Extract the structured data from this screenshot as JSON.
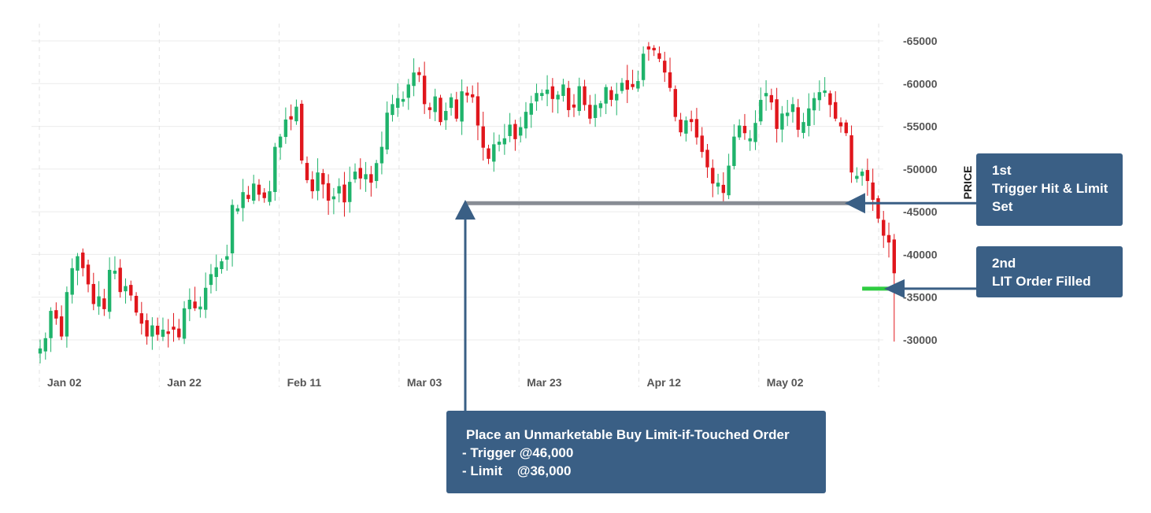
{
  "chart_data": {
    "type": "candlestick",
    "ylabel": "PRICE",
    "ylim": [
      27000,
      66000
    ],
    "y_ticks": [
      65000,
      60000,
      55000,
      50000,
      45000,
      40000,
      35000,
      30000
    ],
    "y_tick_labels": [
      "-65000",
      "-60000",
      "-55000",
      "-50000",
      "-45000",
      "-40000",
      "-35000",
      "-30000"
    ],
    "x_ticks": [
      "Jan 02",
      "Jan 22",
      "Feb 11",
      "Mar 03",
      "Mar 23",
      "Apr 12",
      "May 02"
    ],
    "grid": true,
    "up_color": "#1fb36b",
    "down_color": "#e0161c",
    "close_path": [
      29000,
      30200,
      33400,
      32500,
      30400,
      35600,
      38400,
      39800,
      38400,
      36500,
      34200,
      35100,
      33600,
      38200,
      38100,
      35600,
      36300,
      35200,
      33200,
      31900,
      30400,
      31700,
      30600,
      31200,
      30700,
      31200,
      30300,
      33700,
      34700,
      33700,
      33900,
      36100,
      37700,
      38500,
      39200,
      39800,
      45800,
      45400,
      47300,
      46500,
      48300,
      47000,
      46600,
      47400,
      52600,
      53800,
      55800,
      55800,
      57300,
      51000,
      48700,
      47400,
      49600,
      48200,
      46300,
      46800,
      48000,
      46100,
      48500,
      49700,
      48900,
      49400,
      48400,
      50700,
      52600,
      56600,
      57600,
      58300,
      58200,
      59900,
      61300,
      61000,
      57600,
      56900,
      58500,
      55500,
      56800,
      58400,
      55900,
      59100,
      58600,
      58400,
      55100,
      52500,
      51200,
      52900,
      53200,
      53600,
      55200,
      53500,
      54900,
      56700,
      57700,
      58900,
      58900,
      59300,
      58200,
      58700,
      59900,
      56900,
      57200,
      59700,
      57500,
      55900,
      57500,
      57700,
      59600,
      58100,
      58800,
      60100,
      59300,
      59600,
      60300,
      63500,
      64000,
      63900,
      62900,
      61300,
      59500,
      56100,
      54300,
      55700,
      55500,
      53700,
      52000,
      50200,
      48300,
      48400,
      47200,
      50400,
      53800,
      55100,
      54200,
      53600,
      55400,
      58100,
      58900,
      57800,
      54700,
      56500,
      56600,
      57600,
      54600,
      55500,
      57100,
      58300,
      59000,
      59200,
      57500,
      55900,
      55000,
      54200,
      49600,
      49200,
      49700,
      48600,
      46400,
      44200,
      42200,
      41400,
      37800
    ],
    "trigger_level": 46000,
    "limit_level": 36000,
    "annotations": [
      {
        "lines": [
          "1st",
          "Trigger Hit & Limit",
          "Set"
        ]
      },
      {
        "lines": [
          "2nd",
          "LIT Order Filled"
        ]
      },
      {
        "lines": [
          "Place an Unmarketable Buy Limit-if-Touched Order",
          "- Trigger @46,000",
          "- Limit    @36,000"
        ]
      }
    ],
    "trigger_line_color": "#888c94",
    "limit_line_color": "#2ecc40",
    "annotation_color": "#3a5f85"
  }
}
